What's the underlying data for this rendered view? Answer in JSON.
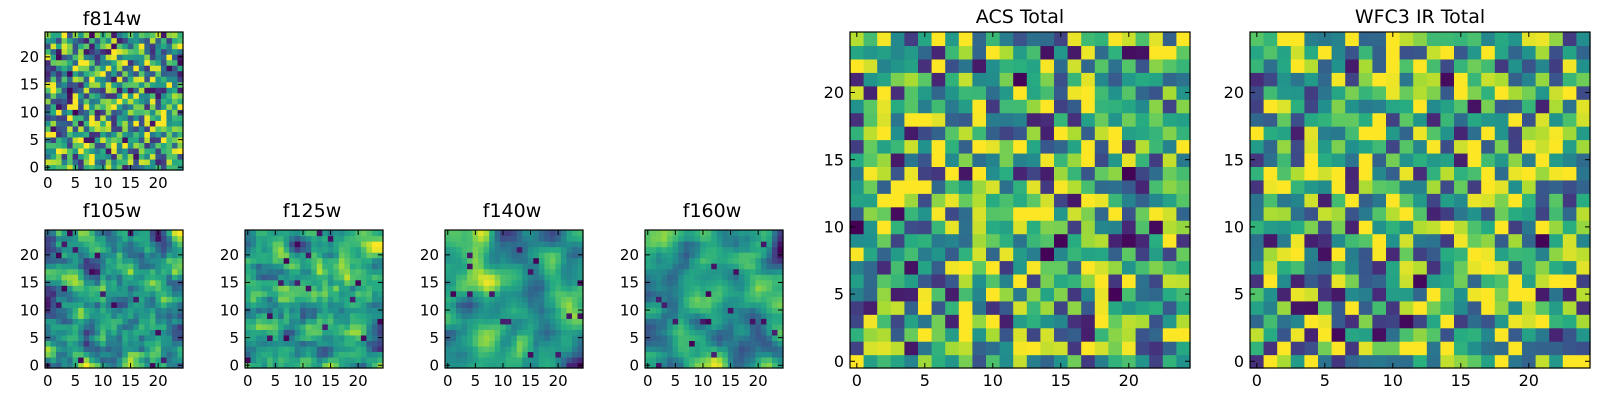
{
  "chart_data": [
    {
      "type": "heatmap",
      "title": "f814w",
      "grid_size": 25,
      "seed": 11,
      "bias": 0.05,
      "smooth": 0,
      "xticks": [
        0,
        5,
        10,
        15,
        20
      ],
      "yticks": [
        0,
        5,
        10,
        15,
        20
      ],
      "xlim": [
        -0.5,
        24.5
      ],
      "ylim": [
        -0.5,
        24.5
      ],
      "colormap": "viridis"
    },
    {
      "type": "heatmap",
      "title": "f105w",
      "grid_size": 25,
      "seed": 23,
      "bias": 0.02,
      "smooth": 1,
      "xticks": [
        0,
        5,
        10,
        15,
        20
      ],
      "yticks": [
        0,
        5,
        10,
        15,
        20
      ],
      "xlim": [
        -0.5,
        24.5
      ],
      "ylim": [
        -0.5,
        24.5
      ],
      "colormap": "viridis"
    },
    {
      "type": "heatmap",
      "title": "f125w",
      "grid_size": 25,
      "seed": 37,
      "bias": 0.02,
      "smooth": 1,
      "xticks": [
        0,
        5,
        10,
        15,
        20
      ],
      "yticks": [
        0,
        5,
        10,
        15,
        20
      ],
      "xlim": [
        -0.5,
        24.5
      ],
      "ylim": [
        -0.5,
        24.5
      ],
      "colormap": "viridis"
    },
    {
      "type": "heatmap",
      "title": "f140w",
      "grid_size": 25,
      "seed": 41,
      "bias": -0.02,
      "smooth": 2,
      "xticks": [
        0,
        5,
        10,
        15,
        20
      ],
      "yticks": [
        0,
        5,
        10,
        15,
        20
      ],
      "xlim": [
        -0.5,
        24.5
      ],
      "ylim": [
        -0.5,
        24.5
      ],
      "colormap": "viridis"
    },
    {
      "type": "heatmap",
      "title": "f160w",
      "grid_size": 25,
      "seed": 53,
      "bias": -0.02,
      "smooth": 2,
      "xticks": [
        0,
        5,
        10,
        15,
        20
      ],
      "yticks": [
        0,
        5,
        10,
        15,
        20
      ],
      "xlim": [
        -0.5,
        24.5
      ],
      "ylim": [
        -0.5,
        24.5
      ],
      "colormap": "viridis"
    },
    {
      "type": "heatmap",
      "title": "ACS Total",
      "grid_size": 25,
      "seed": 67,
      "bias": 0.06,
      "smooth": 0,
      "xticks": [
        0,
        5,
        10,
        15,
        20
      ],
      "yticks": [
        0,
        5,
        10,
        15,
        20
      ],
      "xlim": [
        -0.5,
        24.5
      ],
      "ylim": [
        -0.5,
        24.5
      ],
      "colormap": "viridis"
    },
    {
      "type": "heatmap",
      "title": "WFC3 IR Total",
      "grid_size": 25,
      "seed": 79,
      "bias": 0.08,
      "smooth": 0,
      "xticks": [
        0,
        5,
        10,
        15,
        20
      ],
      "yticks": [
        0,
        5,
        10,
        15,
        20
      ],
      "xlim": [
        -0.5,
        24.5
      ],
      "ylim": [
        -0.5,
        24.5
      ],
      "colormap": "viridis"
    }
  ]
}
